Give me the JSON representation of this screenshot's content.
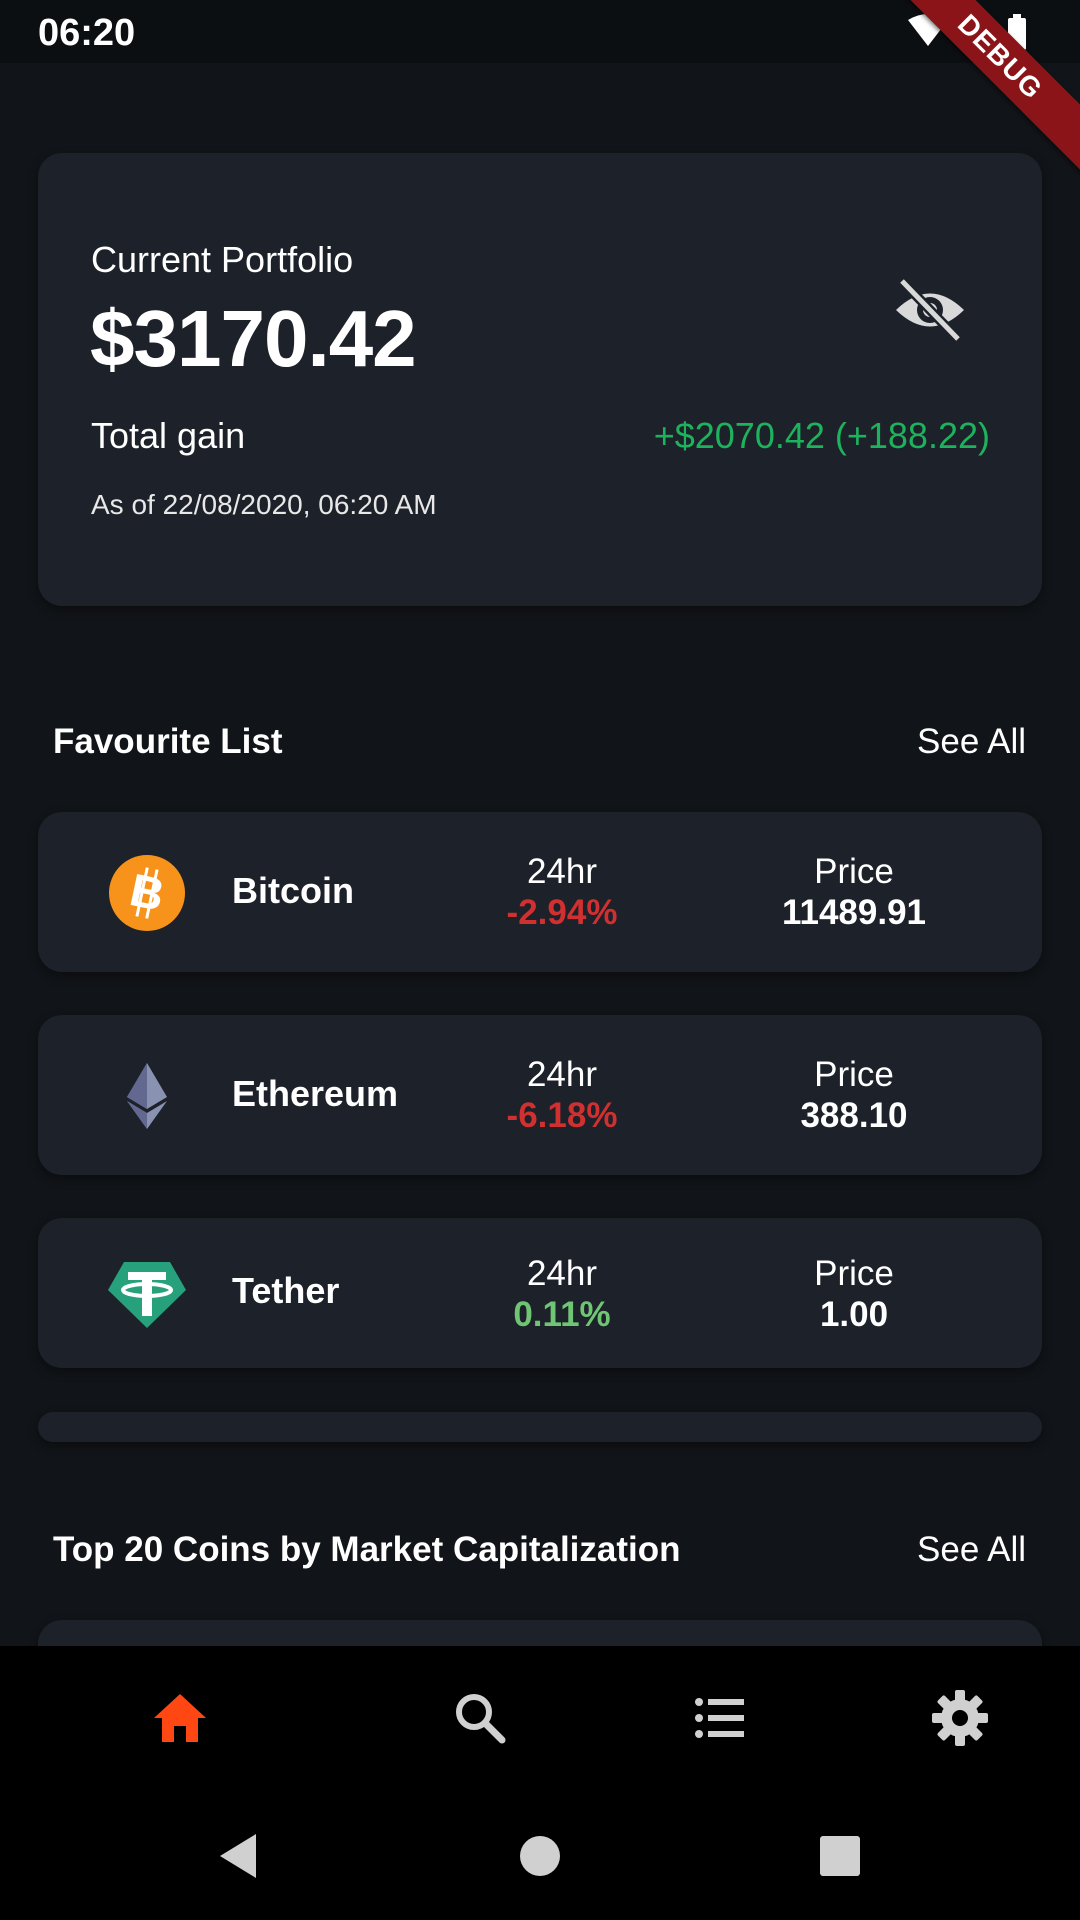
{
  "status_bar": {
    "time": "06:20",
    "debug_label": "DEBUG"
  },
  "portfolio": {
    "title": "Current Portfolio",
    "value": "$3170.42",
    "gain_label": "Total gain",
    "gain_value": "+$2070.42 (+188.22)",
    "as_of": "As of 22/08/2020, 06:20 AM",
    "icon": "eye-off-icon"
  },
  "favourites": {
    "title": "Favourite List",
    "see_all": "See All",
    "items": [
      {
        "name": "Bitcoin",
        "change_label": "24hr",
        "change": "-2.94%",
        "price_label": "Price",
        "price": "11489.91",
        "icon": "bitcoin-icon"
      },
      {
        "name": "Ethereum",
        "change_label": "24hr",
        "change": "-6.18%",
        "price_label": "Price",
        "price": "388.10",
        "icon": "ethereum-icon"
      },
      {
        "name": "Tether",
        "change_label": "24hr",
        "change": "0.11%",
        "price_label": "Price",
        "price": "1.00",
        "icon": "tether-icon"
      }
    ]
  },
  "top_coins": {
    "title": "Top 20 Coins by Market Capitalization",
    "see_all": "See All"
  },
  "bottom_nav": {
    "items": [
      {
        "icon": "home-icon",
        "active": true
      },
      {
        "icon": "search-icon",
        "active": false
      },
      {
        "icon": "list-icon",
        "active": false
      },
      {
        "icon": "gear-icon",
        "active": false
      }
    ]
  },
  "colors": {
    "background": "#111418",
    "card": "#1d2129",
    "gain_positive": "#1db35c",
    "change_negative": "#d0302f",
    "change_positive": "#6fc574",
    "nav_active": "#ff4713"
  }
}
